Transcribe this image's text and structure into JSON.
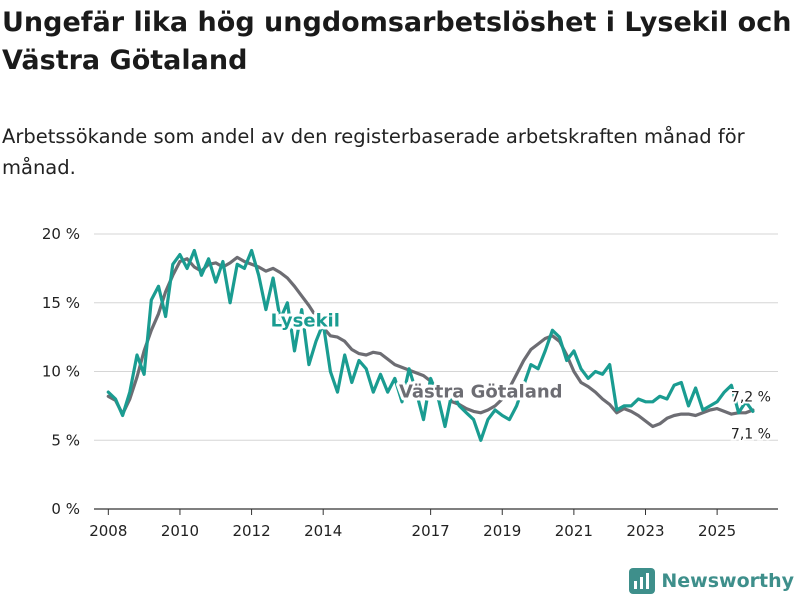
{
  "chart_data": {
    "type": "line",
    "title": "Ungefär lika hög ungdomsarbetslöshet i Lysekil och Västra Götaland",
    "subtitle": "Arbetssökande som andel av den registerbaserade arbetskraften månad för månad.",
    "ylim": [
      0,
      20
    ],
    "y_ticks": [
      0,
      5,
      10,
      15,
      20
    ],
    "y_tick_labels": [
      "0 %",
      "5 %",
      "10 %",
      "15 %",
      "20 %"
    ],
    "x_range": [
      2007.6,
      2026.7
    ],
    "x_ticks": [
      2008,
      2010,
      2012,
      2014,
      2017,
      2019,
      2021,
      2023,
      2025
    ],
    "x_tick_labels": [
      "2008",
      "2010",
      "2012",
      "2014",
      "2017",
      "2019",
      "2021",
      "2023",
      "2025"
    ],
    "series": [
      {
        "name": "Västra Götaland",
        "color": "#6d6d73",
        "x": [
          2008.0,
          2008.2,
          2008.4,
          2008.6,
          2008.8,
          2009.0,
          2009.2,
          2009.4,
          2009.6,
          2009.8,
          2010.0,
          2010.2,
          2010.4,
          2010.6,
          2010.8,
          2011.0,
          2011.2,
          2011.4,
          2011.6,
          2011.8,
          2012.0,
          2012.2,
          2012.4,
          2012.6,
          2012.8,
          2013.0,
          2013.2,
          2013.4,
          2013.6,
          2013.8,
          2014.0,
          2014.2,
          2014.4,
          2014.6,
          2014.8,
          2015.0,
          2015.2,
          2015.4,
          2015.6,
          2015.8,
          2016.0,
          2016.2,
          2016.4,
          2016.6,
          2016.8,
          2017.0,
          2017.2,
          2017.4,
          2017.6,
          2017.8,
          2018.0,
          2018.2,
          2018.4,
          2018.6,
          2018.8,
          2019.0,
          2019.2,
          2019.4,
          2019.6,
          2019.8,
          2020.0,
          2020.2,
          2020.4,
          2020.6,
          2020.8,
          2021.0,
          2021.2,
          2021.4,
          2021.6,
          2021.8,
          2022.0,
          2022.2,
          2022.4,
          2022.6,
          2022.8,
          2023.0,
          2023.2,
          2023.4,
          2023.6,
          2023.8,
          2024.0,
          2024.2,
          2024.4,
          2024.6,
          2024.8,
          2025.0,
          2025.2,
          2025.4,
          2025.6,
          2025.8,
          2026.0
        ],
        "values": [
          8.2,
          7.9,
          6.9,
          8.0,
          9.6,
          11.5,
          13.0,
          14.2,
          15.8,
          17.0,
          18.0,
          18.2,
          17.6,
          17.3,
          17.8,
          17.9,
          17.6,
          17.9,
          18.3,
          18.0,
          17.8,
          17.6,
          17.3,
          17.5,
          17.2,
          16.8,
          16.2,
          15.5,
          14.8,
          14.0,
          13.2,
          12.6,
          12.5,
          12.2,
          11.6,
          11.3,
          11.2,
          11.4,
          11.3,
          10.9,
          10.5,
          10.3,
          10.1,
          9.9,
          9.7,
          9.3,
          8.7,
          8.3,
          7.8,
          7.6,
          7.3,
          7.1,
          7.0,
          7.2,
          7.5,
          8.0,
          8.8,
          9.8,
          10.8,
          11.6,
          12.0,
          12.4,
          12.6,
          12.2,
          11.2,
          10.0,
          9.2,
          8.9,
          8.5,
          8.0,
          7.6,
          7.0,
          7.3,
          7.1,
          6.8,
          6.4,
          6.0,
          6.2,
          6.6,
          6.8,
          6.9,
          6.9,
          6.8,
          7.0,
          7.2,
          7.3,
          7.1,
          6.9,
          7.0,
          7.0,
          7.2
        ],
        "end_label": "7,2 %"
      },
      {
        "name": "Lysekil",
        "color": "#1a9c91",
        "x": [
          2008.0,
          2008.2,
          2008.4,
          2008.6,
          2008.8,
          2009.0,
          2009.2,
          2009.4,
          2009.6,
          2009.8,
          2010.0,
          2010.2,
          2010.4,
          2010.6,
          2010.8,
          2011.0,
          2011.2,
          2011.4,
          2011.6,
          2011.8,
          2012.0,
          2012.2,
          2012.4,
          2012.6,
          2012.8,
          2013.0,
          2013.2,
          2013.4,
          2013.6,
          2013.8,
          2014.0,
          2014.2,
          2014.4,
          2014.6,
          2014.8,
          2015.0,
          2015.2,
          2015.4,
          2015.6,
          2015.8,
          2016.0,
          2016.2,
          2016.4,
          2016.6,
          2016.8,
          2017.0,
          2017.2,
          2017.4,
          2017.6,
          2017.8,
          2018.0,
          2018.2,
          2018.4,
          2018.6,
          2018.8,
          2019.0,
          2019.2,
          2019.4,
          2019.6,
          2019.8,
          2020.0,
          2020.2,
          2020.4,
          2020.6,
          2020.8,
          2021.0,
          2021.2,
          2021.4,
          2021.6,
          2021.8,
          2022.0,
          2022.2,
          2022.4,
          2022.6,
          2022.8,
          2023.0,
          2023.2,
          2023.4,
          2023.6,
          2023.8,
          2024.0,
          2024.2,
          2024.4,
          2024.6,
          2024.8,
          2025.0,
          2025.2,
          2025.4,
          2025.6,
          2025.8,
          2026.0
        ],
        "values": [
          8.5,
          8.0,
          6.8,
          8.5,
          11.2,
          9.8,
          15.2,
          16.2,
          14.0,
          17.8,
          18.5,
          17.5,
          18.8,
          17.0,
          18.2,
          16.5,
          18.0,
          15.0,
          17.8,
          17.5,
          18.8,
          17.0,
          14.5,
          16.8,
          13.8,
          15.0,
          11.5,
          14.5,
          10.5,
          12.2,
          13.5,
          10.0,
          8.5,
          11.2,
          9.2,
          10.8,
          10.2,
          8.5,
          9.8,
          8.5,
          9.5,
          7.8,
          10.2,
          8.5,
          6.5,
          9.5,
          8.2,
          6.0,
          8.5,
          7.5,
          7.0,
          6.5,
          5.0,
          6.5,
          7.2,
          6.8,
          6.5,
          7.5,
          9.0,
          10.5,
          10.2,
          11.5,
          13.0,
          12.5,
          10.8,
          11.5,
          10.2,
          9.5,
          10.0,
          9.8,
          10.5,
          7.2,
          7.5,
          7.5,
          8.0,
          7.8,
          7.8,
          8.2,
          8.0,
          9.0,
          9.2,
          7.5,
          8.8,
          7.2,
          7.5,
          7.8,
          8.5,
          9.0,
          7.0,
          7.8,
          7.1
        ],
        "end_label": "7,1 %"
      }
    ]
  },
  "brand": {
    "name": "Newsworthy"
  }
}
